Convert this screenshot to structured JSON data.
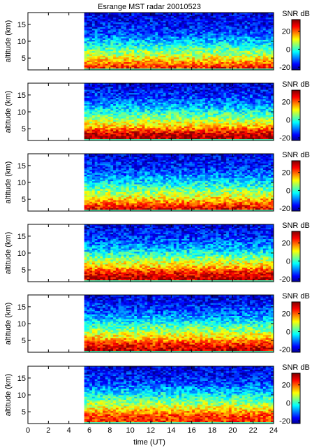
{
  "chart_data": {
    "type": "heatmap",
    "title": "Esrange MST radar 20010523",
    "xlabel": "time (UT)",
    "ylabel": "altitude (km)",
    "colorbar_label": "SNR dB",
    "xlim": [
      0,
      24
    ],
    "ylim": [
      1.5,
      18.5
    ],
    "clim": [
      -20,
      30
    ],
    "x_ticks": [
      0,
      2,
      4,
      6,
      8,
      10,
      12,
      14,
      16,
      18,
      20,
      22,
      24
    ],
    "y_ticks": [
      5,
      10,
      15
    ],
    "colorbar_ticks": [
      -20,
      0,
      20
    ],
    "data_start_hour": 5.5,
    "n_panels": 6,
    "altitude_profile": [
      {
        "altitude_km": 2.5,
        "snr_db": [
          22,
          28,
          24,
          27,
          26,
          22
        ]
      },
      {
        "altitude_km": 4,
        "snr_db": [
          16,
          24,
          18,
          24,
          22,
          20
        ]
      },
      {
        "altitude_km": 6,
        "snr_db": [
          8,
          13,
          10,
          14,
          13,
          12
        ]
      },
      {
        "altitude_km": 8,
        "snr_db": [
          2,
          6,
          4,
          7,
          6,
          5
        ]
      },
      {
        "altitude_km": 10,
        "snr_db": [
          -4,
          0,
          -2,
          0,
          0,
          -1
        ]
      },
      {
        "altitude_km": 12,
        "snr_db": [
          -9,
          -6,
          -7,
          -6,
          -6,
          -7
        ]
      },
      {
        "altitude_km": 14,
        "snr_db": [
          -12,
          -10,
          -11,
          -10,
          -10,
          -11
        ]
      },
      {
        "altitude_km": 16,
        "snr_db": [
          -14,
          -13,
          -13,
          -13,
          -13,
          -13
        ]
      },
      {
        "altitude_km": 18,
        "snr_db": [
          -15,
          -15,
          -15,
          -15,
          -15,
          -15
        ]
      }
    ],
    "colormap": "jet"
  }
}
